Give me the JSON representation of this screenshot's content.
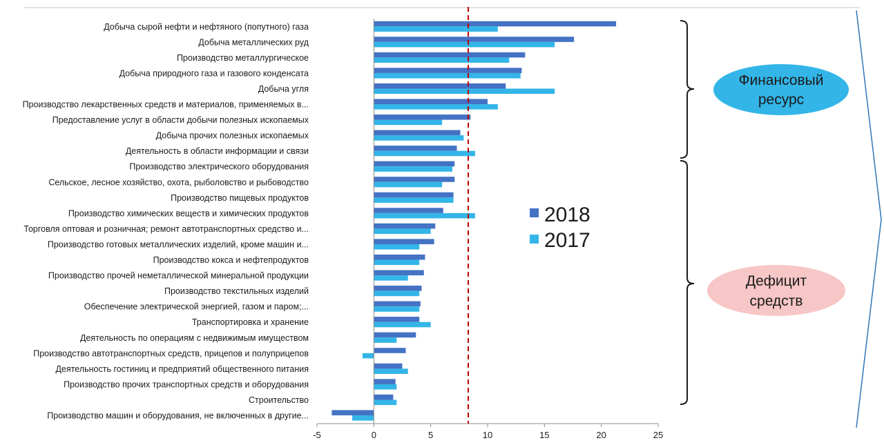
{
  "chart_data": {
    "type": "bar",
    "orientation": "horizontal",
    "categories": [
      "Добыча сырой нефти и нефтяного (попутного) газа",
      "Добыча металлических руд",
      "Производство металлургическое",
      "Добыча природного газа и газового конденсата",
      "Добыча угля",
      "Производство лекарственных средств и материалов, применяемых в...",
      "Предоставление услуг в области добычи полезных ископаемых",
      "Добыча прочих полезных ископаемых",
      "Деятельность в области информации и связи",
      "Производство электрического оборудования",
      "Сельское, лесное хозяйство, охота, рыболовство и рыбоводство",
      "Производство пищевых продуктов",
      "Производство химических веществ и химических продуктов",
      "Торговля оптовая и розничная; ремонт автотранспортных средство и...",
      "Производство готовых металлических изделий, кроме машин и...",
      "Производство кокса и нефтепродуктов",
      "Производство прочей неметаллической минеральной продукции",
      "Производство текстильных изделий",
      "Обеспечение электрической энергией, газом и паром;...",
      "Транспортировка и хранение",
      "Деятельность по операциям с недвижимым имуществом",
      "Производство автотранспортных средств, прицепов и полуприцепов",
      "Деятельность гостиниц и предприятий общественного питания",
      "Производство прочих транспортных средств и оборудования",
      "Строительство",
      "Производство машин и оборудования, не включенных в другие..."
    ],
    "series": [
      {
        "name": "2018",
        "color": "#4472C4",
        "values": [
          21.3,
          17.6,
          13.3,
          13.0,
          11.6,
          10.0,
          8.5,
          7.6,
          7.3,
          7.1,
          7.1,
          7.0,
          6.1,
          5.4,
          5.3,
          4.5,
          4.4,
          4.2,
          4.1,
          4.0,
          3.7,
          2.8,
          2.5,
          1.9,
          1.7,
          -3.7
        ]
      },
      {
        "name": "2017",
        "color": "#33B5E8",
        "values": [
          10.9,
          15.9,
          11.9,
          12.9,
          15.9,
          10.9,
          6.0,
          7.9,
          8.9,
          6.9,
          6.0,
          7.0,
          8.9,
          5.0,
          4.0,
          4.0,
          3.0,
          4.0,
          4.0,
          5.0,
          2.0,
          -1.0,
          3.0,
          2.0,
          2.0,
          -1.9
        ]
      }
    ],
    "xlim": [
      -5,
      25
    ],
    "xticks": [
      -5,
      0,
      5,
      10,
      15,
      20,
      25
    ],
    "reference_line": {
      "value": 8.3,
      "style": "dashed",
      "color": "#C00000"
    },
    "legend": {
      "position": "center",
      "entries": [
        "2018",
        "2017"
      ]
    },
    "grid": false,
    "title": "",
    "xlabel": "",
    "ylabel": ""
  },
  "groups": [
    {
      "label_line1": "Финансовый",
      "label_line2": "ресурс",
      "color": "#33B5E8",
      "from_category": 0,
      "to_category": 8
    },
    {
      "label_line1": "Дефицит",
      "label_line2": "средств",
      "color": "#F7C6C6",
      "from_category": 9,
      "to_category": 25
    }
  ],
  "colors": {
    "axis": "#8c8c8c",
    "arrow": "#2E75B6",
    "top_rule": "#d9d9d9"
  }
}
